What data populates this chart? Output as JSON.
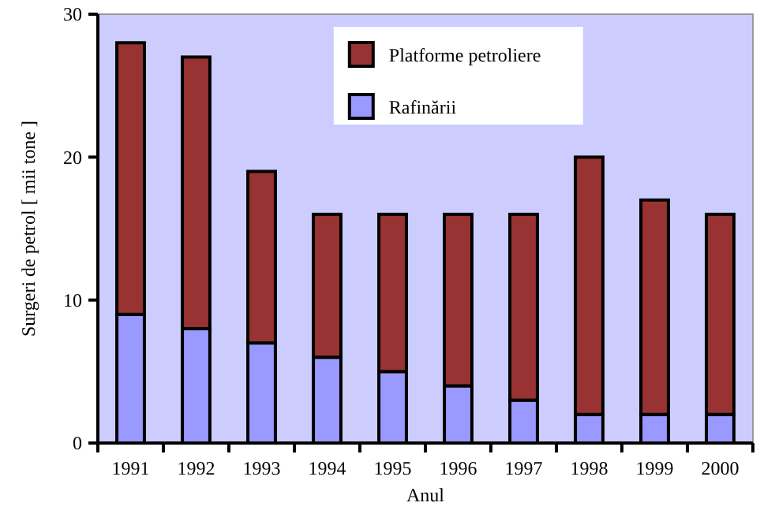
{
  "chart_data": {
    "type": "bar",
    "stacked": true,
    "xlabel": "Anul",
    "ylabel": "Surgeri de petrol [ mii tone ]",
    "categories": [
      "1991",
      "1992",
      "1993",
      "1994",
      "1995",
      "1996",
      "1997",
      "1998",
      "1999",
      "2000"
    ],
    "series": [
      {
        "name": "Rafinării",
        "color": "#9999ff",
        "values": [
          9,
          8,
          7,
          6,
          5,
          4,
          3,
          2,
          2,
          2
        ]
      },
      {
        "name": "Platforme petroliere",
        "color": "#993333",
        "values": [
          19,
          19,
          12,
          10,
          11,
          12,
          13,
          18,
          15,
          14
        ]
      }
    ],
    "ylim": [
      0,
      30
    ],
    "yticks": [
      0,
      10,
      20,
      30
    ],
    "grid": false,
    "legend": "top"
  }
}
